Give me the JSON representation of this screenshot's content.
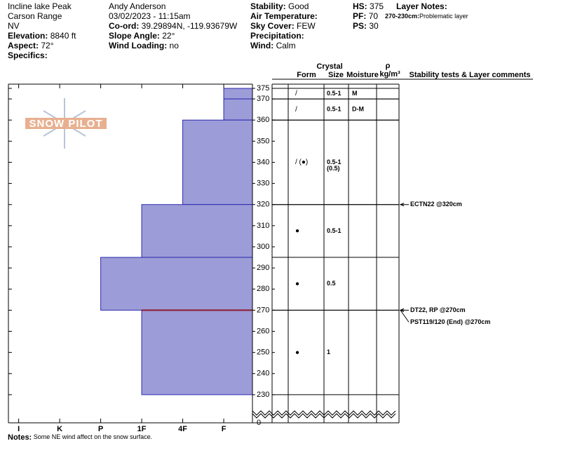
{
  "header": {
    "columns": [
      [
        {
          "value": "Incline lake Peak"
        },
        {
          "value": "Carson Range"
        },
        {
          "value": "NV"
        },
        {
          "label": "Elevation:",
          "value": "8840 ft"
        },
        {
          "label": "Aspect:",
          "value": "72°"
        },
        {
          "label": "Specifics:"
        }
      ],
      [
        {
          "value": "Andy Anderson"
        },
        {
          "value": "03/02/2023 - 11:15am"
        },
        {
          "label": "Co-ord:",
          "value": "39.29894N, -119.93679W"
        },
        {
          "label": "Slope Angle:",
          "value": "22°"
        },
        {
          "label": "Wind Loading:",
          "value": "no"
        }
      ],
      [
        {
          "label": "Stability:",
          "value": "Good"
        },
        {
          "label": "Air Temperature:"
        },
        {
          "label": "Sky Cover:",
          "value": "FEW"
        },
        {
          "label": "Precipitation:"
        },
        {
          "label": "Wind:",
          "value": "Calm"
        }
      ],
      [
        {
          "label": "HS:",
          "value": "375"
        },
        {
          "label": "PF:",
          "value": "70"
        },
        {
          "label": "PS:",
          "value": "30"
        }
      ]
    ],
    "layer_notes_title": "Layer Notes:",
    "layer_notes": [
      {
        "label": "270-230cm:",
        "value": "Problematic layer"
      }
    ]
  },
  "logo": "SNOW PILOT",
  "columns": {
    "crystal": "Crystal",
    "form": "Form",
    "size": "Size",
    "moisture": "Moisture",
    "rho": "ρ",
    "density": "kg/m³",
    "comments": "Stability tests & Layer comments"
  },
  "chart_data": {
    "type": "snow-profile",
    "ylim": [
      222,
      377
    ],
    "yticks": [
      375,
      370,
      360,
      350,
      340,
      330,
      320,
      310,
      300,
      290,
      280,
      270,
      260,
      250,
      240,
      230
    ],
    "ybase_tick": 0,
    "xlim": [
      6.25,
      0.3
    ],
    "xticks": [
      {
        "value": 6,
        "label": "I"
      },
      {
        "value": 5,
        "label": "K"
      },
      {
        "value": 4,
        "label": "P"
      },
      {
        "value": 3,
        "label": "1F"
      },
      {
        "value": 2,
        "label": "4F"
      },
      {
        "value": 1,
        "label": "F"
      }
    ],
    "layer_color": "#9c9cd8",
    "layer_edge": "#2b2bb0",
    "highlight_color": "#8b1a2a",
    "highlight": 270,
    "layers": [
      {
        "top": 375,
        "bottom": 370,
        "hardness": 1,
        "form": "/",
        "size": "0.5-1",
        "moisture": "M"
      },
      {
        "top": 370,
        "bottom": 360,
        "hardness": 1,
        "form": "/",
        "size": "0.5-1",
        "moisture": "D-M"
      },
      {
        "top": 360,
        "bottom": 320,
        "hardness": 2,
        "form": "/ (●)",
        "size": "0.5-1",
        "size2": "(0.5)"
      },
      {
        "top": 320,
        "bottom": 295,
        "hardness": 3,
        "form": "●",
        "size": "0.5-1"
      },
      {
        "top": 295,
        "bottom": 270,
        "hardness": 4,
        "form": "●",
        "size": "0.5"
      },
      {
        "top": 270,
        "bottom": 230,
        "hardness": 3,
        "form": "●",
        "size": "1"
      }
    ],
    "tests": [
      {
        "height": 320,
        "label": "ECTN22 @320cm"
      },
      {
        "height": 270,
        "label": "DT22, RP @270cm"
      },
      {
        "height": 270,
        "label": "PST119/120 (End) @270cm"
      }
    ]
  },
  "notes": {
    "label": "Notes:",
    "value": "Some NE wind affect on the snow surface."
  }
}
